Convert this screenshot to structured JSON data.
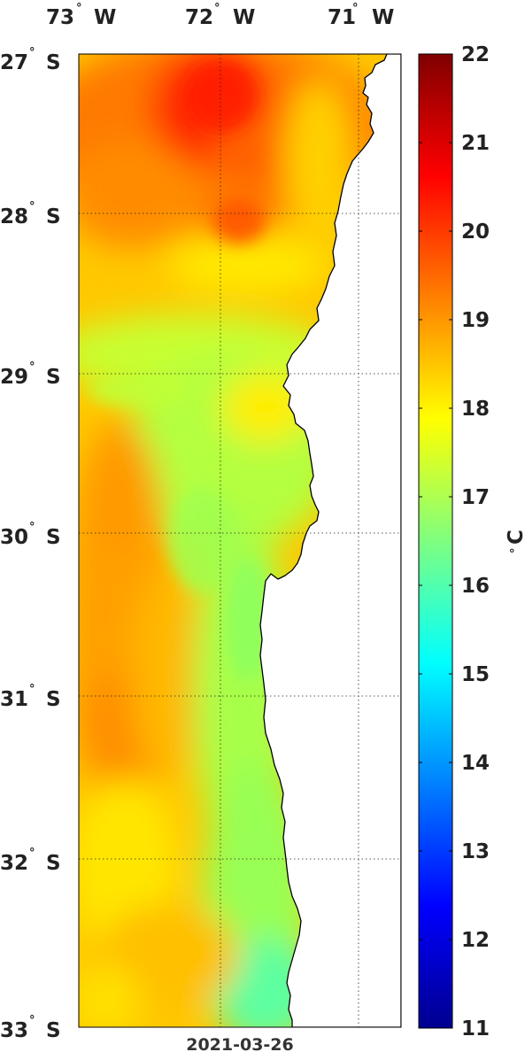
{
  "map": {
    "date": "2021-03-26",
    "lon_labels": [
      {
        "deg": "73",
        "hemi": "W"
      },
      {
        "deg": "72",
        "hemi": "W"
      },
      {
        "deg": "71",
        "hemi": "W"
      }
    ],
    "lat_labels": [
      {
        "deg": "27",
        "hemi": "S"
      },
      {
        "deg": "28",
        "hemi": "S"
      },
      {
        "deg": "29",
        "hemi": "S"
      },
      {
        "deg": "30",
        "hemi": "S"
      },
      {
        "deg": "31",
        "hemi": "S"
      },
      {
        "deg": "32",
        "hemi": "S"
      },
      {
        "deg": "33",
        "hemi": "S"
      }
    ],
    "lon_range": [
      -73,
      -70.7
    ],
    "lat_range": [
      -33,
      -27
    ],
    "land_color": "#ffffff",
    "coast_color": "#000000",
    "grid": "dotted"
  },
  "colorbar": {
    "unit": "C",
    "unit_degree": "°",
    "min": 11,
    "max": 22,
    "ticks": [
      "22",
      "21",
      "20",
      "19",
      "18",
      "17",
      "16",
      "15",
      "14",
      "13",
      "12",
      "11"
    ],
    "colormap": "jet"
  }
}
